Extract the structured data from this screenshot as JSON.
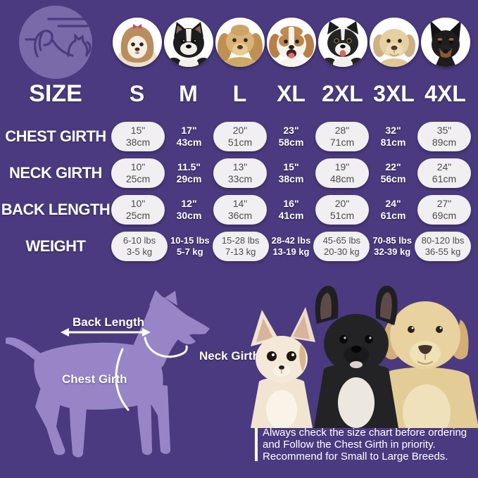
{
  "colors": {
    "background": "#4b3a7f",
    "pill_background": "#f1eff2",
    "pill_text": "#4c4c4c",
    "white_text": "#ffffff",
    "logo_circle": "#7b6aaa",
    "dog_silhouette": "#9785c8"
  },
  "header": {
    "size_label": "SIZE",
    "sizes": [
      "S",
      "M",
      "L",
      "XL",
      "2XL",
      "3XL",
      "4XL"
    ],
    "dog_photo_icons": [
      "shih-tzu",
      "boston-terrier",
      "cocker-spaniel",
      "beagle",
      "border-collie",
      "labrador",
      "doberman"
    ]
  },
  "table": {
    "rows": [
      {
        "label": "CHEST GIRTH",
        "values": [
          [
            "15\"",
            "38cm"
          ],
          [
            "17\"",
            "43cm"
          ],
          [
            "20\"",
            "51cm"
          ],
          [
            "23\"",
            "58cm"
          ],
          [
            "28\"",
            "71cm"
          ],
          [
            "32\"",
            "81cm"
          ],
          [
            "35\"",
            "89cm"
          ]
        ]
      },
      {
        "label": "NECK GIRTH",
        "values": [
          [
            "10\"",
            "25cm"
          ],
          [
            "11.5\"",
            "29cm"
          ],
          [
            "13\"",
            "33cm"
          ],
          [
            "15\"",
            "38cm"
          ],
          [
            "19\"",
            "48cm"
          ],
          [
            "22\"",
            "56cm"
          ],
          [
            "24\"",
            "61cm"
          ]
        ]
      },
      {
        "label": "BACK LENGTH",
        "values": [
          [
            "10\"",
            "25cm"
          ],
          [
            "12\"",
            "30cm"
          ],
          [
            "14\"",
            "36cm"
          ],
          [
            "16\"",
            "41cm"
          ],
          [
            "20\"",
            "51cm"
          ],
          [
            "24\"",
            "61cm"
          ],
          [
            "27\"",
            "69cm"
          ]
        ]
      },
      {
        "label": "WEIGHT",
        "values": [
          [
            "6-10 lbs",
            "3-5 kg"
          ],
          [
            "10-15 lbs",
            "5-7 kg"
          ],
          [
            "15-28 lbs",
            "7-13 kg"
          ],
          [
            "28-42 lbs",
            "13-19 kg"
          ],
          [
            "45-65 lbs",
            "20-30 kg"
          ],
          [
            "70-85 lbs",
            "32-39 kg"
          ],
          [
            "80-120 lbs",
            "36-55 kg"
          ]
        ]
      }
    ]
  },
  "diagram": {
    "back_length": "Back Length",
    "neck_girth": "Neck Girth",
    "chest_girth": "Chest Girth"
  },
  "note": {
    "lines": [
      "Always check the size chart before ordering",
      "and Follow the Chest Girth in priority.",
      "Recommend for Small to Large Breeds."
    ]
  },
  "chart_data": {
    "type": "table",
    "columns": [
      "SIZE",
      "S",
      "M",
      "L",
      "XL",
      "2XL",
      "3XL",
      "4XL"
    ],
    "rows": [
      [
        "CHEST GIRTH",
        "15\" 38cm",
        "17\" 43cm",
        "20\" 51cm",
        "23\" 58cm",
        "28\" 71cm",
        "32\" 81cm",
        "35\" 89cm"
      ],
      [
        "NECK GIRTH",
        "10\" 25cm",
        "11.5\" 29cm",
        "13\" 33cm",
        "15\" 38cm",
        "19\" 48cm",
        "22\" 56cm",
        "24\" 61cm"
      ],
      [
        "BACK LENGTH",
        "10\" 25cm",
        "12\" 30cm",
        "14\" 36cm",
        "16\" 41cm",
        "20\" 51cm",
        "24\" 61cm",
        "27\" 69cm"
      ],
      [
        "WEIGHT",
        "6-10 lbs 3-5 kg",
        "10-15 lbs 5-7 kg",
        "15-28 lbs 7-13 kg",
        "28-42 lbs 13-19 kg",
        "45-65 lbs 20-30 kg",
        "70-85 lbs 32-39 kg",
        "80-120 lbs 36-55 kg"
      ]
    ]
  }
}
